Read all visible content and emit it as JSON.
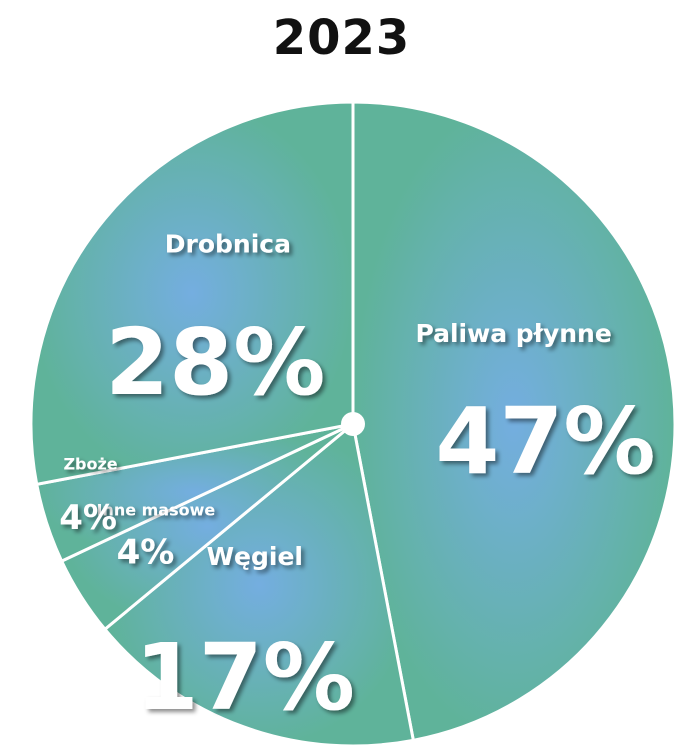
{
  "chart_data": {
    "type": "pie",
    "title": "2023",
    "slices": [
      {
        "name": "Paliwa płynne",
        "value": 47,
        "label": "47%"
      },
      {
        "name": "Węgiel",
        "value": 17,
        "label": "17%"
      },
      {
        "name": "Inne masowe",
        "value": 4,
        "label": "4%"
      },
      {
        "name": "Zboże",
        "value": 4,
        "label": "4%"
      },
      {
        "name": "Drobnica",
        "value": 28,
        "label": "28%"
      }
    ],
    "colors": {
      "edge": "#5fb39a",
      "center": "#74aee0",
      "separator": "#ffffff"
    },
    "legend": "none"
  }
}
